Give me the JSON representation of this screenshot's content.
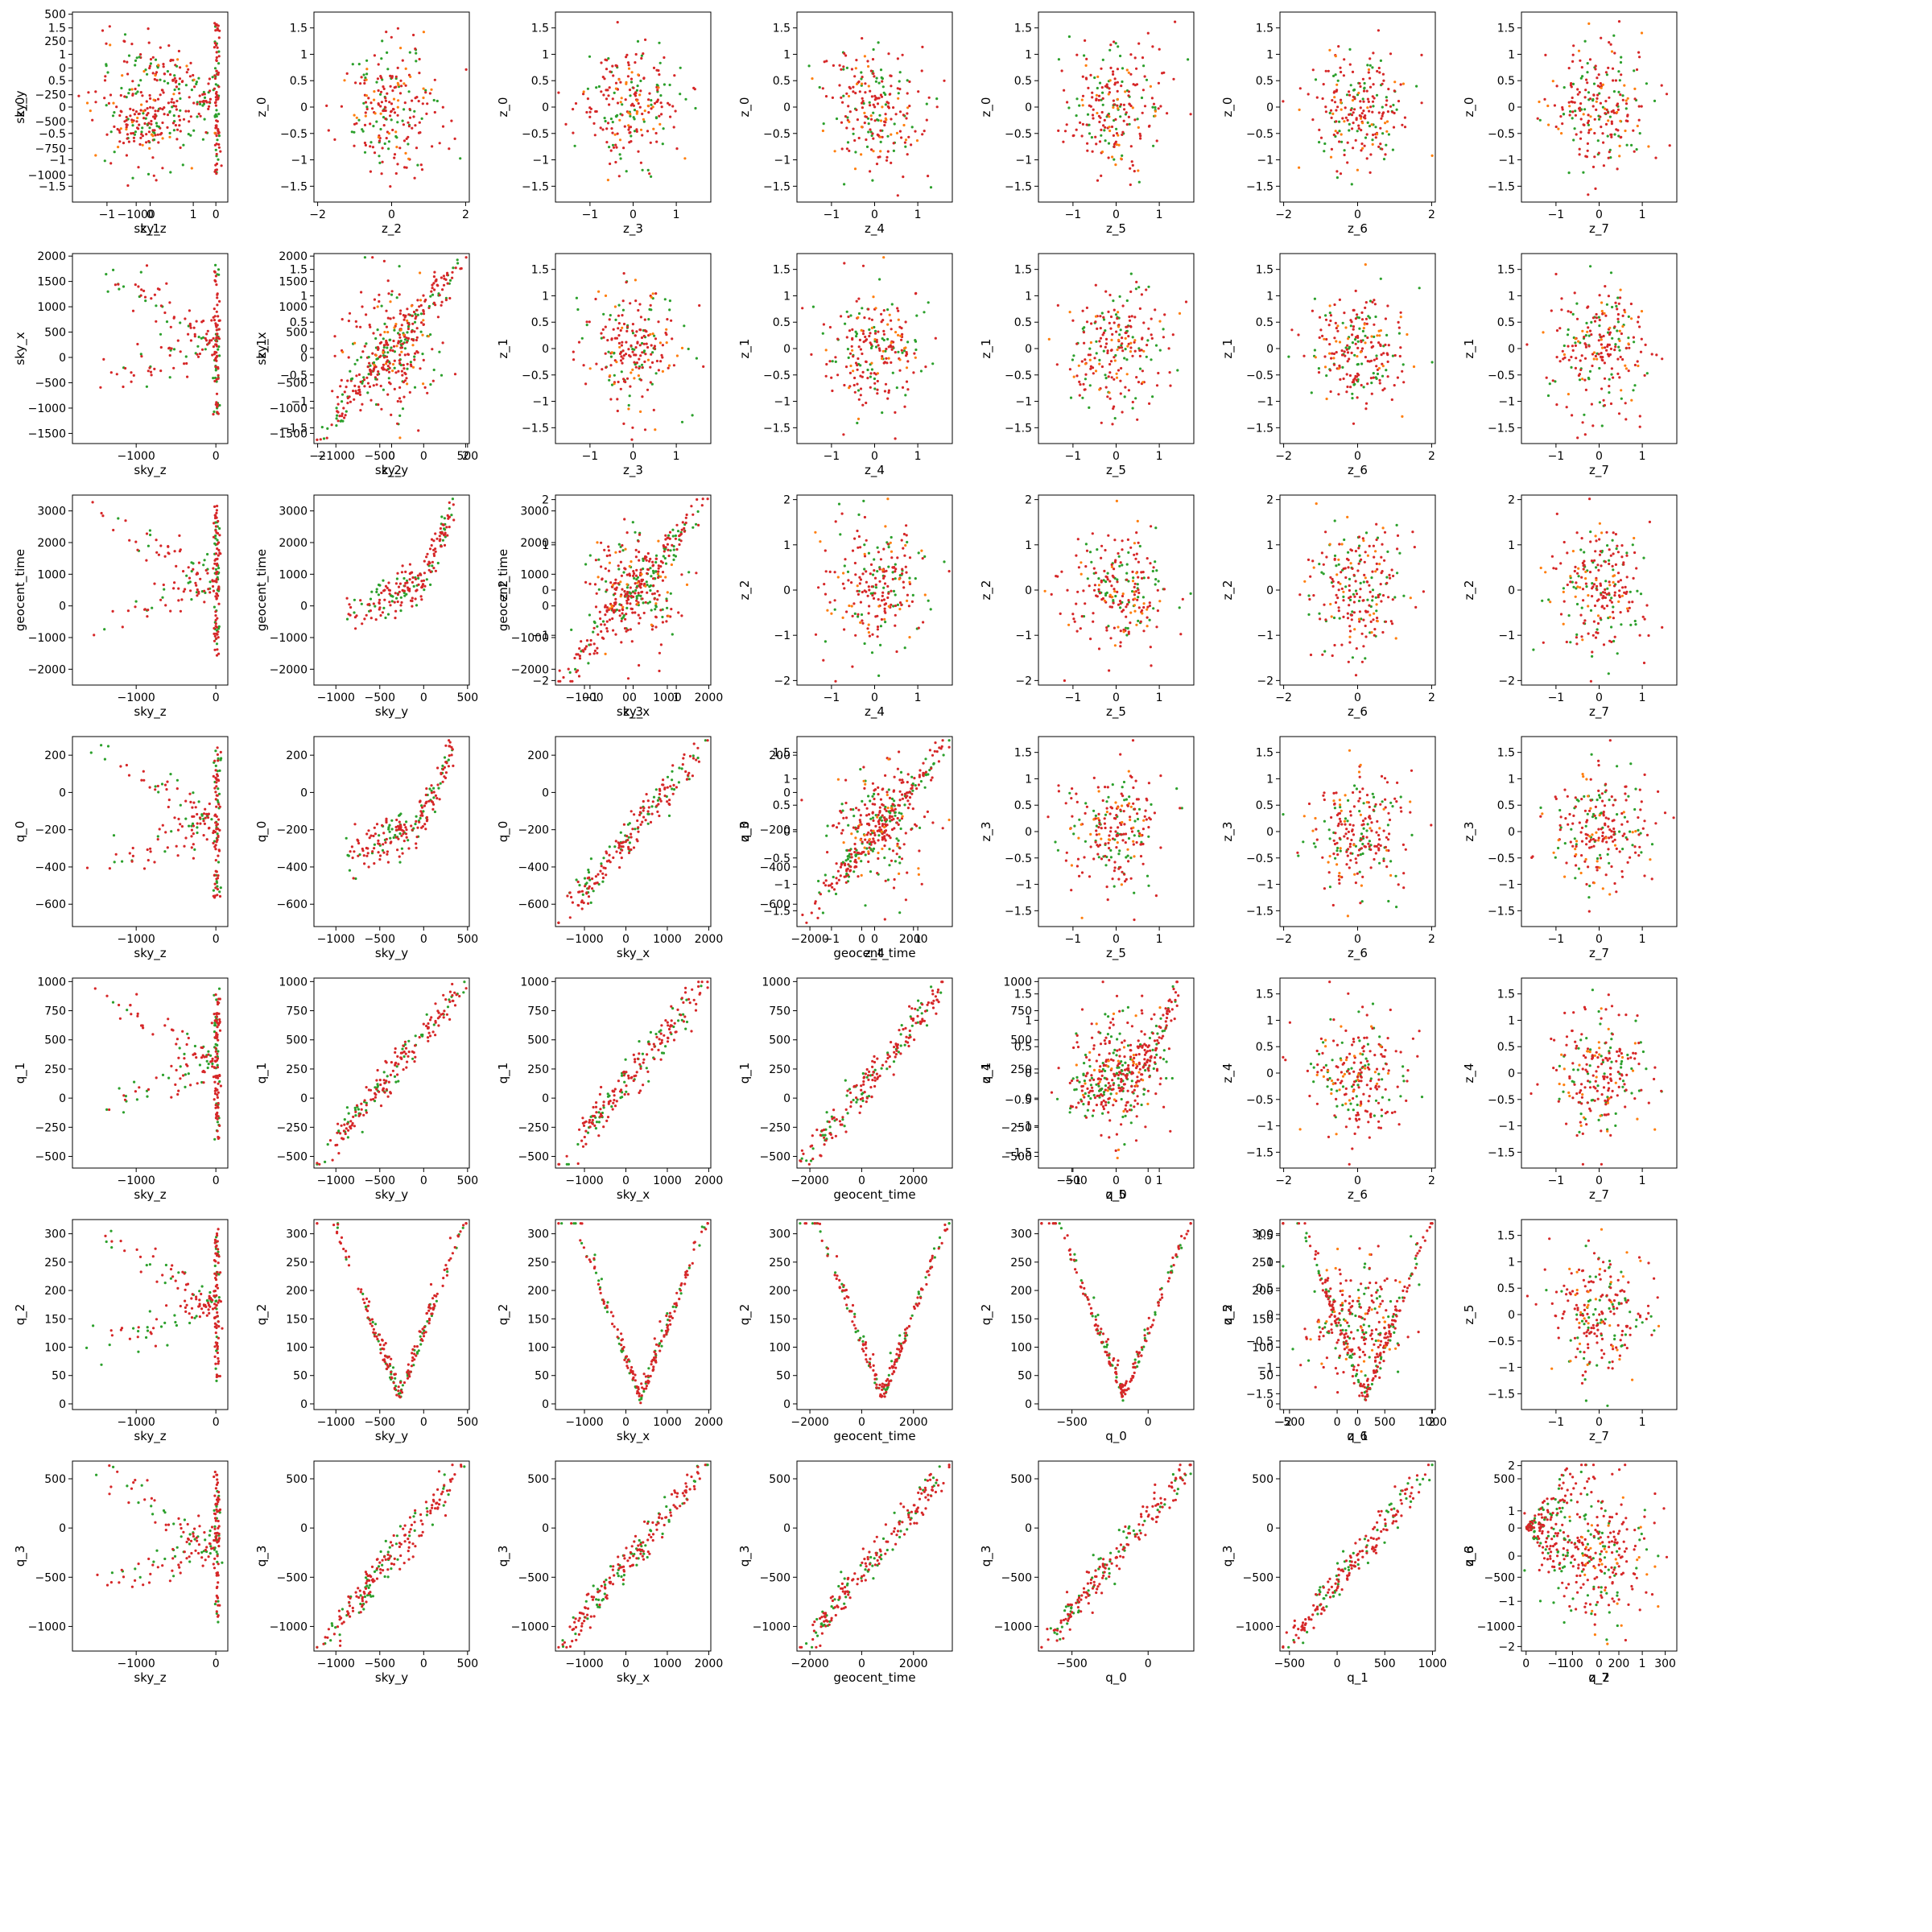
{
  "chart_data": {
    "type": "scatter",
    "layout": "pair-grid",
    "grid": false,
    "series_colors": {
      "green": "#2ca02c",
      "orange": "#ff7f0e",
      "red": "#d62728"
    },
    "left_variables": [
      "sky_z",
      "sky_y",
      "sky_x",
      "geocent_time",
      "q_0",
      "q_1",
      "q_2",
      "q_3"
    ],
    "right_variables": [
      "z_0",
      "z_1",
      "z_2",
      "z_3",
      "z_4",
      "z_5",
      "z_6",
      "z_7"
    ],
    "ranges": {
      "sky_z": [
        -1800,
        150
      ],
      "sky_y": [
        -1250,
        520
      ],
      "sky_x": [
        -1700,
        2050
      ],
      "geocent_time": [
        -2500,
        3500
      ],
      "q_0": [
        -720,
        300
      ],
      "q_1": [
        -600,
        1030
      ],
      "q_2": [
        -10,
        325
      ],
      "q_3": [
        -1250,
        680
      ],
      "z_0": [
        -1.8,
        1.8
      ],
      "z_1": [
        -1.8,
        1.8
      ],
      "z_2": [
        -2.1,
        2.1
      ],
      "z_3": [
        -1.8,
        1.8
      ],
      "z_4": [
        -1.8,
        1.8
      ],
      "z_5": [
        -1.8,
        1.8
      ],
      "z_6": [
        -2.1,
        2.1
      ],
      "z_7": [
        -1.8,
        1.8
      ]
    },
    "ticks": {
      "sky_z": [
        -1000,
        0
      ],
      "sky_y": [
        -1000,
        -500,
        0,
        500
      ],
      "sky_x": [
        -1000,
        0,
        1000,
        2000
      ],
      "geocent_time": [
        -2000,
        0,
        2000
      ],
      "q_0": [
        -500,
        0
      ],
      "q_1": [
        -500,
        0,
        500,
        1000
      ],
      "q_2": [
        0,
        100,
        200,
        300
      ],
      "z_0": [
        -1,
        0,
        1
      ],
      "z_1": [
        -1,
        0,
        1
      ],
      "z_2": [
        -2,
        0,
        2
      ],
      "z_3": [
        -1,
        0,
        1
      ],
      "z_4": [
        -1,
        0,
        1
      ],
      "z_5": [
        -1,
        0,
        1
      ],
      "z_6": [
        -2,
        0,
        2
      ],
      "z_7": [
        -1,
        0,
        1
      ]
    },
    "yticks": {
      "sky_y": [
        500,
        250,
        0,
        -250,
        -500,
        -750,
        -1000
      ],
      "sky_x": [
        2000,
        1500,
        1000,
        500,
        0,
        -500,
        -1000,
        -1500
      ],
      "geocent_time": [
        3000,
        2000,
        1000,
        0,
        -1000,
        -2000
      ],
      "q_0": [
        200,
        0,
        -200,
        -400,
        -600
      ],
      "q_1": [
        1000,
        750,
        500,
        250,
        0,
        -250,
        -500
      ],
      "q_2": [
        300,
        250,
        200,
        150,
        100,
        50,
        0
      ],
      "q_3": [
        500,
        0,
        -500,
        -1000
      ],
      "z_0": [
        1.5,
        1.0,
        0.5,
        0.0,
        -0.5,
        -1.0,
        -1.5
      ],
      "z_1": [
        1.5,
        1.0,
        0.5,
        0.0,
        -0.5,
        -1.0,
        -1.5
      ],
      "z_2": [
        2,
        1,
        0,
        -1,
        -2
      ],
      "z_3": [
        1.5,
        1.0,
        0.5,
        0.0,
        -0.5,
        -1.0,
        -1.5
      ],
      "z_4": [
        1.5,
        1.0,
        0.5,
        0.0,
        -0.5,
        -1.0,
        -1.5
      ],
      "z_5": [
        1.5,
        1.0,
        0.5,
        0.0,
        -0.5,
        -1.0,
        -1.5
      ],
      "z_6": [
        2,
        1,
        0,
        -1,
        -2
      ]
    },
    "panels": [
      {
        "x": "sky_z",
        "y": "sky_y",
        "shape": "elbow"
      },
      {
        "x": "sky_z",
        "y": "sky_x",
        "shape": "elbow"
      },
      {
        "x": "sky_y",
        "y": "sky_x",
        "shape": "linear"
      },
      {
        "x": "sky_z",
        "y": "geocent_time",
        "shape": "elbow"
      },
      {
        "x": "sky_y",
        "y": "geocent_time",
        "shape": "curve"
      },
      {
        "x": "sky_x",
        "y": "geocent_time",
        "shape": "linear"
      },
      {
        "x": "sky_z",
        "y": "q_0",
        "shape": "elbow"
      },
      {
        "x": "sky_y",
        "y": "q_0",
        "shape": "curve"
      },
      {
        "x": "sky_x",
        "y": "q_0",
        "shape": "linear"
      },
      {
        "x": "geocent_time",
        "y": "q_0",
        "shape": "linear"
      },
      {
        "x": "sky_z",
        "y": "q_1",
        "shape": "elbow"
      },
      {
        "x": "sky_y",
        "y": "q_1",
        "shape": "linear"
      },
      {
        "x": "sky_x",
        "y": "q_1",
        "shape": "linear"
      },
      {
        "x": "geocent_time",
        "y": "q_1",
        "shape": "linear"
      },
      {
        "x": "q_0",
        "y": "q_1",
        "shape": "curve"
      },
      {
        "x": "sky_z",
        "y": "q_2",
        "shape": "elbow"
      },
      {
        "x": "sky_y",
        "y": "q_2",
        "shape": "vee"
      },
      {
        "x": "sky_x",
        "y": "q_2",
        "shape": "vee"
      },
      {
        "x": "geocent_time",
        "y": "q_2",
        "shape": "vee"
      },
      {
        "x": "q_0",
        "y": "q_2",
        "shape": "vee"
      },
      {
        "x": "q_1",
        "y": "q_2",
        "shape": "vee"
      },
      {
        "x": "sky_z",
        "y": "q_3",
        "shape": "elbow"
      },
      {
        "x": "sky_y",
        "y": "q_3",
        "shape": "linear"
      },
      {
        "x": "sky_x",
        "y": "q_3",
        "shape": "linear"
      },
      {
        "x": "geocent_time",
        "y": "q_3",
        "shape": "linear"
      },
      {
        "x": "q_0",
        "y": "q_3",
        "shape": "linear"
      },
      {
        "x": "q_1",
        "y": "q_3",
        "shape": "linear"
      },
      {
        "x": "q_2",
        "y": "q_3",
        "shape": "fan"
      },
      {
        "x": "z_1",
        "y": "z_0",
        "shape": "cloud"
      },
      {
        "x": "z_2",
        "y": "z_0",
        "shape": "cloud"
      },
      {
        "x": "z_3",
        "y": "z_0",
        "shape": "cloud"
      },
      {
        "x": "z_4",
        "y": "z_0",
        "shape": "cloud"
      },
      {
        "x": "z_5",
        "y": "z_0",
        "shape": "cloud"
      },
      {
        "x": "z_6",
        "y": "z_0",
        "shape": "cloud"
      },
      {
        "x": "z_7",
        "y": "z_0",
        "shape": "cloud"
      },
      {
        "x": "z_2",
        "y": "z_1",
        "shape": "cloud"
      },
      {
        "x": "z_3",
        "y": "z_1",
        "shape": "cloud"
      },
      {
        "x": "z_4",
        "y": "z_1",
        "shape": "cloud"
      },
      {
        "x": "z_5",
        "y": "z_1",
        "shape": "cloud"
      },
      {
        "x": "z_6",
        "y": "z_1",
        "shape": "cloud"
      },
      {
        "x": "z_7",
        "y": "z_1",
        "shape": "cloud"
      },
      {
        "x": "z_3",
        "y": "z_2",
        "shape": "cloud"
      },
      {
        "x": "z_4",
        "y": "z_2",
        "shape": "cloud"
      },
      {
        "x": "z_5",
        "y": "z_2",
        "shape": "cloud"
      },
      {
        "x": "z_6",
        "y": "z_2",
        "shape": "cloud"
      },
      {
        "x": "z_7",
        "y": "z_2",
        "shape": "cloud"
      },
      {
        "x": "z_4",
        "y": "z_3",
        "shape": "cloud"
      },
      {
        "x": "z_5",
        "y": "z_3",
        "shape": "cloud"
      },
      {
        "x": "z_6",
        "y": "z_3",
        "shape": "cloud"
      },
      {
        "x": "z_7",
        "y": "z_3",
        "shape": "cloud"
      },
      {
        "x": "z_5",
        "y": "z_4",
        "shape": "cloud"
      },
      {
        "x": "z_6",
        "y": "z_4",
        "shape": "cloud"
      },
      {
        "x": "z_7",
        "y": "z_4",
        "shape": "cloud"
      },
      {
        "x": "z_6",
        "y": "z_5",
        "shape": "cloud"
      },
      {
        "x": "z_7",
        "y": "z_5",
        "shape": "cloud"
      },
      {
        "x": "z_7",
        "y": "z_6",
        "shape": "cloud"
      }
    ]
  }
}
